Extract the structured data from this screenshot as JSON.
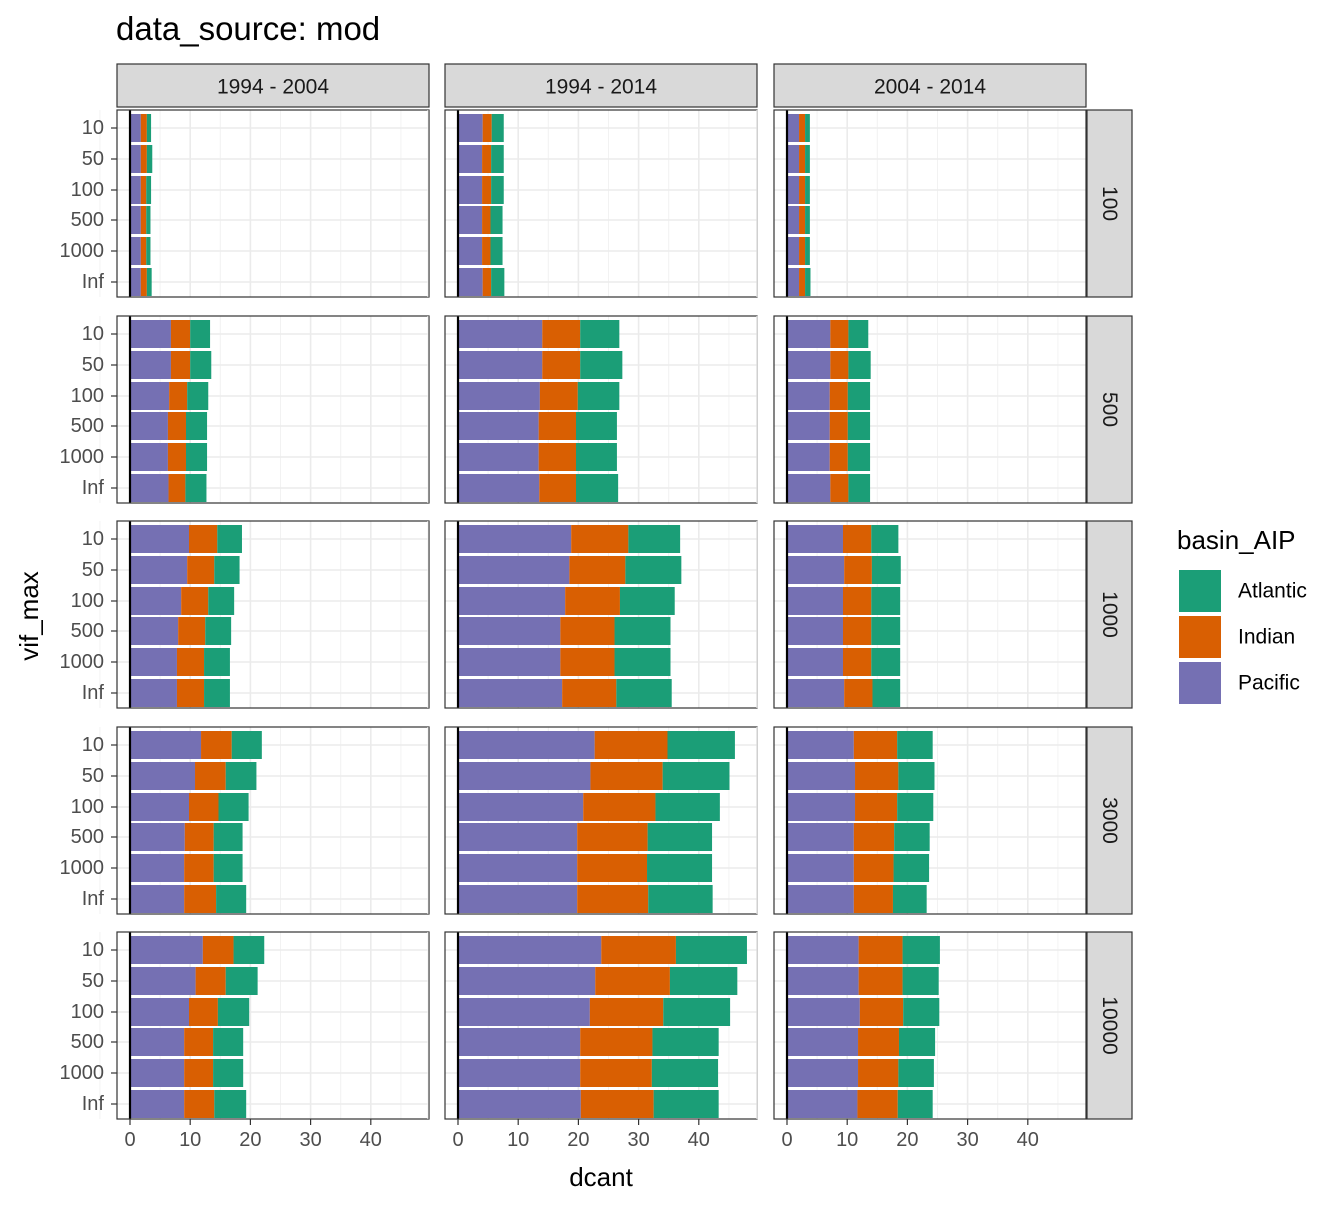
{
  "chart_data": {
    "type": "bar",
    "orientation": "horizontal",
    "stacked": true,
    "title": "data_source: mod",
    "xlabel": "dcant",
    "ylabel": "vif_max",
    "xlim": [
      -2,
      50
    ],
    "x_ticks": [
      "0",
      "10",
      "20",
      "30",
      "40"
    ],
    "categories": [
      "10",
      "50",
      "100",
      "500",
      "1000",
      "Inf"
    ],
    "grid": true,
    "legend": {
      "title": "basin_AIP",
      "position": "right",
      "entries": [
        "Atlantic",
        "Indian",
        "Pacific"
      ]
    },
    "colors": {
      "Atlantic": "#1B9E77",
      "Indian": "#D95F02",
      "Pacific": "#7570B3"
    },
    "stack_order": [
      "Pacific",
      "Indian",
      "Atlantic"
    ],
    "facet_cols": [
      "1994 - 2004",
      "1994 - 2014",
      "2004 - 2014"
    ],
    "facet_rows": [
      "100",
      "500",
      "1000",
      "3000",
      "10000"
    ],
    "panels": [
      {
        "col": "1994 - 2004",
        "row": "100",
        "series": [
          {
            "name": "Pacific",
            "values": [
              1.8,
              1.8,
              1.8,
              1.8,
              1.8,
              1.8
            ]
          },
          {
            "name": "Indian",
            "values": [
              1.0,
              1.0,
              0.9,
              0.9,
              0.9,
              1.0
            ]
          },
          {
            "name": "Atlantic",
            "values": [
              0.7,
              0.9,
              0.8,
              0.7,
              0.7,
              0.8
            ]
          }
        ]
      },
      {
        "col": "1994 - 2014",
        "row": "100",
        "series": [
          {
            "name": "Pacific",
            "values": [
              4.1,
              4.0,
              4.0,
              4.0,
              4.0,
              4.1
            ]
          },
          {
            "name": "Indian",
            "values": [
              1.5,
              1.5,
              1.5,
              1.4,
              1.4,
              1.4
            ]
          },
          {
            "name": "Atlantic",
            "values": [
              2.0,
              2.1,
              2.1,
              2.0,
              2.0,
              2.2
            ]
          }
        ]
      },
      {
        "col": "2004 - 2014",
        "row": "100",
        "series": [
          {
            "name": "Pacific",
            "values": [
              2.0,
              2.0,
              2.0,
              2.0,
              2.0,
              2.0
            ]
          },
          {
            "name": "Indian",
            "values": [
              1.0,
              1.0,
              1.0,
              1.0,
              1.0,
              1.0
            ]
          },
          {
            "name": "Atlantic",
            "values": [
              0.8,
              0.8,
              0.8,
              0.8,
              0.8,
              0.9
            ]
          }
        ]
      },
      {
        "col": "1994 - 2004",
        "row": "500",
        "series": [
          {
            "name": "Pacific",
            "values": [
              6.8,
              6.8,
              6.5,
              6.3,
              6.3,
              6.4
            ]
          },
          {
            "name": "Indian",
            "values": [
              3.2,
              3.2,
              3.0,
              3.0,
              3.0,
              2.8
            ]
          },
          {
            "name": "Atlantic",
            "values": [
              3.3,
              3.5,
              3.5,
              3.5,
              3.5,
              3.5
            ]
          }
        ]
      },
      {
        "col": "1994 - 2014",
        "row": "500",
        "series": [
          {
            "name": "Pacific",
            "values": [
              14.0,
              14.0,
              13.6,
              13.4,
              13.4,
              13.5
            ]
          },
          {
            "name": "Indian",
            "values": [
              6.3,
              6.3,
              6.3,
              6.2,
              6.2,
              6.1
            ]
          },
          {
            "name": "Atlantic",
            "values": [
              6.5,
              7.0,
              6.9,
              6.8,
              6.8,
              7.0
            ]
          }
        ]
      },
      {
        "col": "2004 - 2014",
        "row": "500",
        "series": [
          {
            "name": "Pacific",
            "values": [
              7.2,
              7.2,
              7.1,
              7.1,
              7.1,
              7.2
            ]
          },
          {
            "name": "Indian",
            "values": [
              3.0,
              3.0,
              3.0,
              3.0,
              3.0,
              3.0
            ]
          },
          {
            "name": "Atlantic",
            "values": [
              3.3,
              3.7,
              3.7,
              3.7,
              3.7,
              3.6
            ]
          }
        ]
      },
      {
        "col": "1994 - 2004",
        "row": "1000",
        "series": [
          {
            "name": "Pacific",
            "values": [
              9.8,
              9.5,
              8.5,
              8.0,
              7.8,
              7.8
            ]
          },
          {
            "name": "Indian",
            "values": [
              4.7,
              4.5,
              4.5,
              4.5,
              4.5,
              4.5
            ]
          },
          {
            "name": "Atlantic",
            "values": [
              4.1,
              4.2,
              4.3,
              4.3,
              4.3,
              4.3
            ]
          }
        ]
      },
      {
        "col": "1994 - 2014",
        "row": "1000",
        "series": [
          {
            "name": "Pacific",
            "values": [
              18.8,
              18.5,
              17.8,
              17.0,
              17.0,
              17.3
            ]
          },
          {
            "name": "Indian",
            "values": [
              9.5,
              9.3,
              9.1,
              9.0,
              9.0,
              9.0
            ]
          },
          {
            "name": "Atlantic",
            "values": [
              8.6,
              9.3,
              9.1,
              9.3,
              9.3,
              9.2
            ]
          }
        ]
      },
      {
        "col": "2004 - 2014",
        "row": "1000",
        "series": [
          {
            "name": "Pacific",
            "values": [
              9.3,
              9.5,
              9.3,
              9.3,
              9.3,
              9.5
            ]
          },
          {
            "name": "Indian",
            "values": [
              4.7,
              4.6,
              4.7,
              4.7,
              4.7,
              4.7
            ]
          },
          {
            "name": "Atlantic",
            "values": [
              4.5,
              4.8,
              4.8,
              4.8,
              4.8,
              4.6
            ]
          }
        ]
      },
      {
        "col": "1994 - 2004",
        "row": "3000",
        "series": [
          {
            "name": "Pacific",
            "values": [
              11.8,
              10.8,
              9.8,
              9.1,
              9.0,
              9.0
            ]
          },
          {
            "name": "Indian",
            "values": [
              5.1,
              5.1,
              4.9,
              4.8,
              4.9,
              5.3
            ]
          },
          {
            "name": "Atlantic",
            "values": [
              5.0,
              5.1,
              5.0,
              4.8,
              4.8,
              5.0
            ]
          }
        ]
      },
      {
        "col": "1994 - 2014",
        "row": "3000",
        "series": [
          {
            "name": "Pacific",
            "values": [
              22.7,
              22.0,
              20.8,
              19.8,
              19.8,
              19.8
            ]
          },
          {
            "name": "Indian",
            "values": [
              12.1,
              12.0,
              12.0,
              11.7,
              11.6,
              11.8
            ]
          },
          {
            "name": "Atlantic",
            "values": [
              11.2,
              11.1,
              10.7,
              10.7,
              10.8,
              10.7
            ]
          }
        ]
      },
      {
        "col": "2004 - 2014",
        "row": "3000",
        "series": [
          {
            "name": "Pacific",
            "values": [
              11.1,
              11.3,
              11.3,
              11.1,
              11.1,
              11.1
            ]
          },
          {
            "name": "Indian",
            "values": [
              7.2,
              7.2,
              7.0,
              6.7,
              6.6,
              6.5
            ]
          },
          {
            "name": "Atlantic",
            "values": [
              5.9,
              6.0,
              6.0,
              5.9,
              5.9,
              5.6
            ]
          }
        ]
      },
      {
        "col": "1994 - 2004",
        "row": "10000",
        "series": [
          {
            "name": "Pacific",
            "values": [
              12.1,
              10.9,
              9.8,
              9.0,
              9.0,
              9.0
            ]
          },
          {
            "name": "Indian",
            "values": [
              5.1,
              5.0,
              4.8,
              4.8,
              4.8,
              5.0
            ]
          },
          {
            "name": "Atlantic",
            "values": [
              5.1,
              5.3,
              5.2,
              5.0,
              5.0,
              5.3
            ]
          }
        ]
      },
      {
        "col": "1994 - 2014",
        "row": "10000",
        "series": [
          {
            "name": "Pacific",
            "values": [
              23.8,
              22.8,
              21.9,
              20.3,
              20.3,
              20.4
            ]
          },
          {
            "name": "Indian",
            "values": [
              12.4,
              12.4,
              12.2,
              12.0,
              11.9,
              12.1
            ]
          },
          {
            "name": "Atlantic",
            "values": [
              11.8,
              11.2,
              11.1,
              11.0,
              11.0,
              10.8
            ]
          }
        ]
      },
      {
        "col": "2004 - 2014",
        "row": "10000",
        "series": [
          {
            "name": "Pacific",
            "values": [
              11.9,
              11.9,
              12.1,
              11.8,
              11.8,
              11.7
            ]
          },
          {
            "name": "Indian",
            "values": [
              7.3,
              7.3,
              7.2,
              6.8,
              6.7,
              6.7
            ]
          },
          {
            "name": "Atlantic",
            "values": [
              6.2,
              6.0,
              6.0,
              6.0,
              5.9,
              5.8
            ]
          }
        ]
      }
    ]
  }
}
